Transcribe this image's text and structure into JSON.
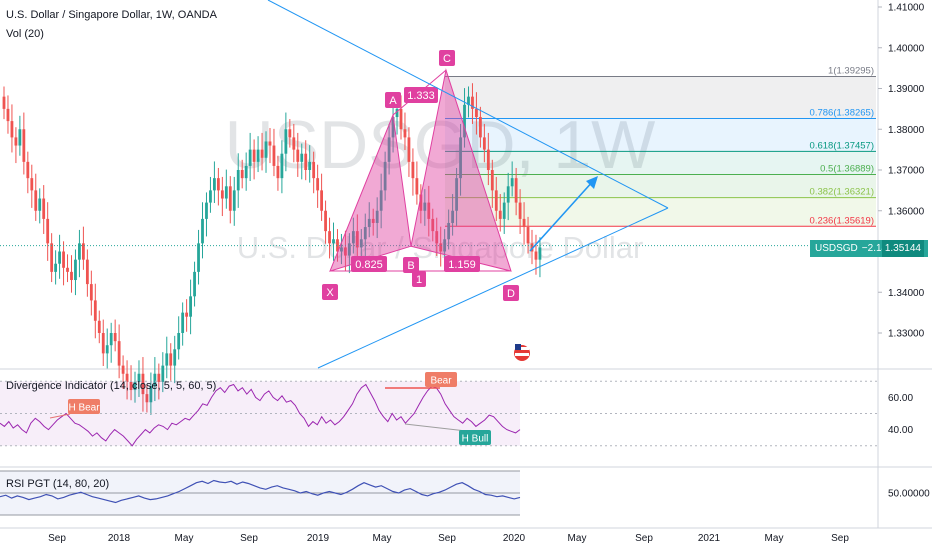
{
  "header": {
    "title": "U.S. Dollar / Singapore Dollar, 1W, OANDA",
    "vol_label": "Vol (20)"
  },
  "watermark": {
    "symbol": "USDSGD, 1W",
    "name": "U.S. Dollar / Singapore Dollar"
  },
  "price_tag": {
    "symbol": "USDSGD",
    "change": "−2.14%",
    "value": "1.35144"
  },
  "colors": {
    "up": "#26a69a",
    "down": "#ef5350",
    "pattern": "#e040a0",
    "trend": "#2196f3",
    "osc": "#9c27b0",
    "rsi": "#3f51b5"
  },
  "chart_data": [
    {
      "type": "candlestick",
      "title": "U.S. Dollar / Singapore Dollar, 1W, OANDA",
      "x_ticks": [
        "Sep",
        "2018",
        "May",
        "Sep",
        "2019",
        "May",
        "Sep",
        "2020",
        "May",
        "Sep",
        "2021",
        "May",
        "Sep"
      ],
      "y_ticks": [
        "1.41000",
        "1.40000",
        "1.39000",
        "1.38000",
        "1.37000",
        "1.36000",
        "1.35000",
        "1.34000",
        "1.33000"
      ],
      "ylim": [
        1.323,
        1.412
      ],
      "close_series": [
        1.385,
        1.382,
        1.378,
        1.376,
        1.38,
        1.372,
        1.368,
        1.365,
        1.36,
        1.363,
        1.358,
        1.352,
        1.345,
        1.347,
        1.35,
        1.346,
        1.345,
        1.343,
        1.348,
        1.352,
        1.348,
        1.342,
        1.338,
        1.333,
        1.33,
        1.325,
        1.327,
        1.33,
        1.328,
        1.322,
        1.32,
        1.318,
        1.316,
        1.318,
        1.32,
        1.315,
        1.313,
        1.317,
        1.32,
        1.318,
        1.322,
        1.325,
        1.322,
        1.326,
        1.33,
        1.335,
        1.334,
        1.339,
        1.345,
        1.352,
        1.358,
        1.362,
        1.365,
        1.368,
        1.365,
        1.363,
        1.366,
        1.36,
        1.365,
        1.37,
        1.368,
        1.371,
        1.375,
        1.372,
        1.375,
        1.373,
        1.377,
        1.376,
        1.371,
        1.368,
        1.374,
        1.38,
        1.378,
        1.375,
        1.372,
        1.374,
        1.37,
        1.372,
        1.368,
        1.365,
        1.36,
        1.355,
        1.352,
        1.353,
        1.35,
        1.351,
        1.349,
        1.352,
        1.355,
        1.351,
        1.353,
        1.356,
        1.358,
        1.357,
        1.36,
        1.365,
        1.372,
        1.378,
        1.383,
        1.385,
        1.38,
        1.378,
        1.372,
        1.368,
        1.364,
        1.36,
        1.362,
        1.358,
        1.355,
        1.352,
        1.35,
        1.353,
        1.357,
        1.36,
        1.368,
        1.378,
        1.386,
        1.388,
        1.385,
        1.383,
        1.378,
        1.375,
        1.37,
        1.365,
        1.36,
        1.358,
        1.362,
        1.366,
        1.368,
        1.362,
        1.358,
        1.356,
        1.352,
        1.35,
        1.348,
        1.351
      ],
      "harmonic_pattern": {
        "points": [
          {
            "label": "X",
            "price": 1.3452
          },
          {
            "label": "A",
            "price": 1.3835
          },
          {
            "label": "B",
            "price": 1.3513
          },
          {
            "label": "C",
            "price": 1.3945
          },
          {
            "label": "D",
            "price": 1.3452
          }
        ],
        "extra_label": "1",
        "ratios": [
          "0.825",
          "1.333",
          "1.159"
        ]
      },
      "fib_levels": [
        {
          "ratio": "1",
          "label": "1(1.39295)",
          "price": 1.39295,
          "color": "#787b86"
        },
        {
          "ratio": "0.786",
          "label": "0.786(1.38265)",
          "price": 1.38265,
          "color": "#2196f3"
        },
        {
          "ratio": "0.618",
          "label": "0.618(1.37457)",
          "price": 1.37457,
          "color": "#089981"
        },
        {
          "ratio": "0.5",
          "label": "0.5(1.36889)",
          "price": 1.36889,
          "color": "#4caf50"
        },
        {
          "ratio": "0.382",
          "label": "0.382(1.36321)",
          "price": 1.36321,
          "color": "#8bc34a"
        },
        {
          "ratio": "0.236",
          "label": "0.236(1.35619)",
          "price": 1.35619,
          "color": "#f23645"
        }
      ],
      "last_price": 1.35144
    },
    {
      "type": "line",
      "title": "Divergence Indicator (14, close, 5, 5, 60, 5)",
      "y_ticks": [
        "60.00",
        "40.00"
      ],
      "ylim": [
        28,
        72
      ],
      "levels": [
        70,
        50,
        30
      ],
      "annotations": [
        "H Bear",
        "Bear",
        "H Bull"
      ],
      "series": [
        {
          "values": [
            44,
            42,
            45,
            41,
            43,
            40,
            38,
            44,
            47,
            45,
            42,
            40,
            43,
            46,
            48,
            50,
            47,
            44,
            43,
            41,
            39,
            36,
            38,
            35,
            33,
            37,
            40,
            38,
            36,
            33,
            30,
            34,
            37,
            40,
            38,
            41,
            43,
            42,
            40,
            44,
            43,
            45,
            47,
            46,
            49,
            52,
            56,
            55,
            60,
            64,
            66,
            63,
            67,
            68,
            64,
            66,
            62,
            65,
            60,
            58,
            62,
            64,
            60,
            58,
            61,
            57,
            58,
            55,
            50,
            47,
            42,
            45,
            43,
            48,
            44,
            46,
            43,
            45,
            48,
            52,
            56,
            62,
            66,
            68,
            63,
            58,
            52,
            48,
            45,
            50,
            46,
            48,
            44,
            47,
            50,
            55,
            60,
            64,
            67,
            66,
            62,
            56,
            52,
            48,
            46,
            44,
            47,
            45,
            42,
            44,
            46,
            49,
            48,
            45,
            42,
            40,
            39,
            38,
            40
          ]
        }
      ]
    },
    {
      "type": "line",
      "title": "RSI PGT (14, 80, 20)",
      "y_ticks": [
        "50.00000"
      ],
      "ylim": [
        20,
        80
      ],
      "levels": [
        80,
        50,
        20
      ],
      "series": [
        {
          "values": [
            45,
            47,
            43,
            46,
            44,
            41,
            43,
            45,
            48,
            46,
            42,
            44,
            47,
            49,
            51,
            48,
            45,
            43,
            41,
            39,
            37,
            40,
            42,
            44,
            46,
            43,
            41,
            42,
            44,
            46,
            49,
            52,
            56,
            60,
            64,
            66,
            63,
            67,
            65,
            64,
            66,
            62,
            65,
            63,
            60,
            57,
            55,
            58,
            60,
            57,
            55,
            53,
            50,
            52,
            49,
            47,
            50,
            52,
            50,
            48,
            51,
            55,
            60,
            64,
            61,
            58,
            60,
            56,
            52,
            50,
            54,
            56,
            52,
            48,
            46,
            49,
            51,
            54,
            58,
            62,
            64,
            60,
            55,
            52,
            48,
            47,
            45,
            46,
            44,
            42,
            44
          ]
        }
      ]
    }
  ]
}
